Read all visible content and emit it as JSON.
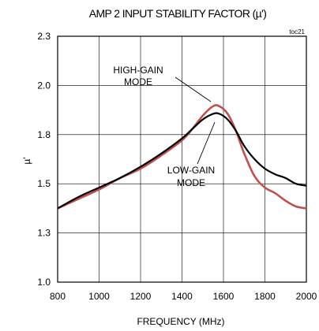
{
  "chart_data": {
    "type": "line",
    "title": "AMP 2 INPUT STABILITY FACTOR (µ')",
    "figure_id": "toc21",
    "xlabel": "FREQUENCY (MHz)",
    "ylabel": "µ'",
    "xlim": [
      800,
      2000
    ],
    "ylim": [
      1.0,
      2.3
    ],
    "xticks": [
      "800",
      "1000",
      "1200",
      "1400",
      "1600",
      "1800",
      "2000"
    ],
    "yticks": [
      "1.0",
      "1.3",
      "1.5",
      "1.8",
      "2.0",
      "2.3"
    ],
    "grid": true,
    "series": [
      {
        "name": "HIGH-GAIN MODE",
        "color": "#c0504d",
        "x": [
          800,
          900,
          1000,
          1100,
          1200,
          1300,
          1400,
          1450,
          1500,
          1550,
          1580,
          1620,
          1660,
          1700,
          1750,
          1800,
          1850,
          1900,
          1950,
          2000
        ],
        "y": [
          1.39,
          1.44,
          1.49,
          1.55,
          1.6,
          1.67,
          1.75,
          1.81,
          1.88,
          1.93,
          1.93,
          1.89,
          1.8,
          1.68,
          1.56,
          1.5,
          1.47,
          1.43,
          1.4,
          1.39
        ]
      },
      {
        "name": "LOW-GAIN MODE",
        "color": "#000000",
        "x": [
          800,
          900,
          1000,
          1100,
          1200,
          1300,
          1400,
          1450,
          1500,
          1550,
          1580,
          1620,
          1660,
          1700,
          1750,
          1800,
          1850,
          1900,
          1950,
          2000
        ],
        "y": [
          1.39,
          1.45,
          1.5,
          1.55,
          1.61,
          1.68,
          1.76,
          1.81,
          1.86,
          1.89,
          1.89,
          1.86,
          1.8,
          1.72,
          1.65,
          1.6,
          1.57,
          1.55,
          1.52,
          1.51
        ]
      }
    ],
    "annotations": [
      {
        "line1": "HIGH-GAIN",
        "line2": "MODE"
      },
      {
        "line1": "LOW-GAIN",
        "line2": "MODE"
      }
    ]
  }
}
